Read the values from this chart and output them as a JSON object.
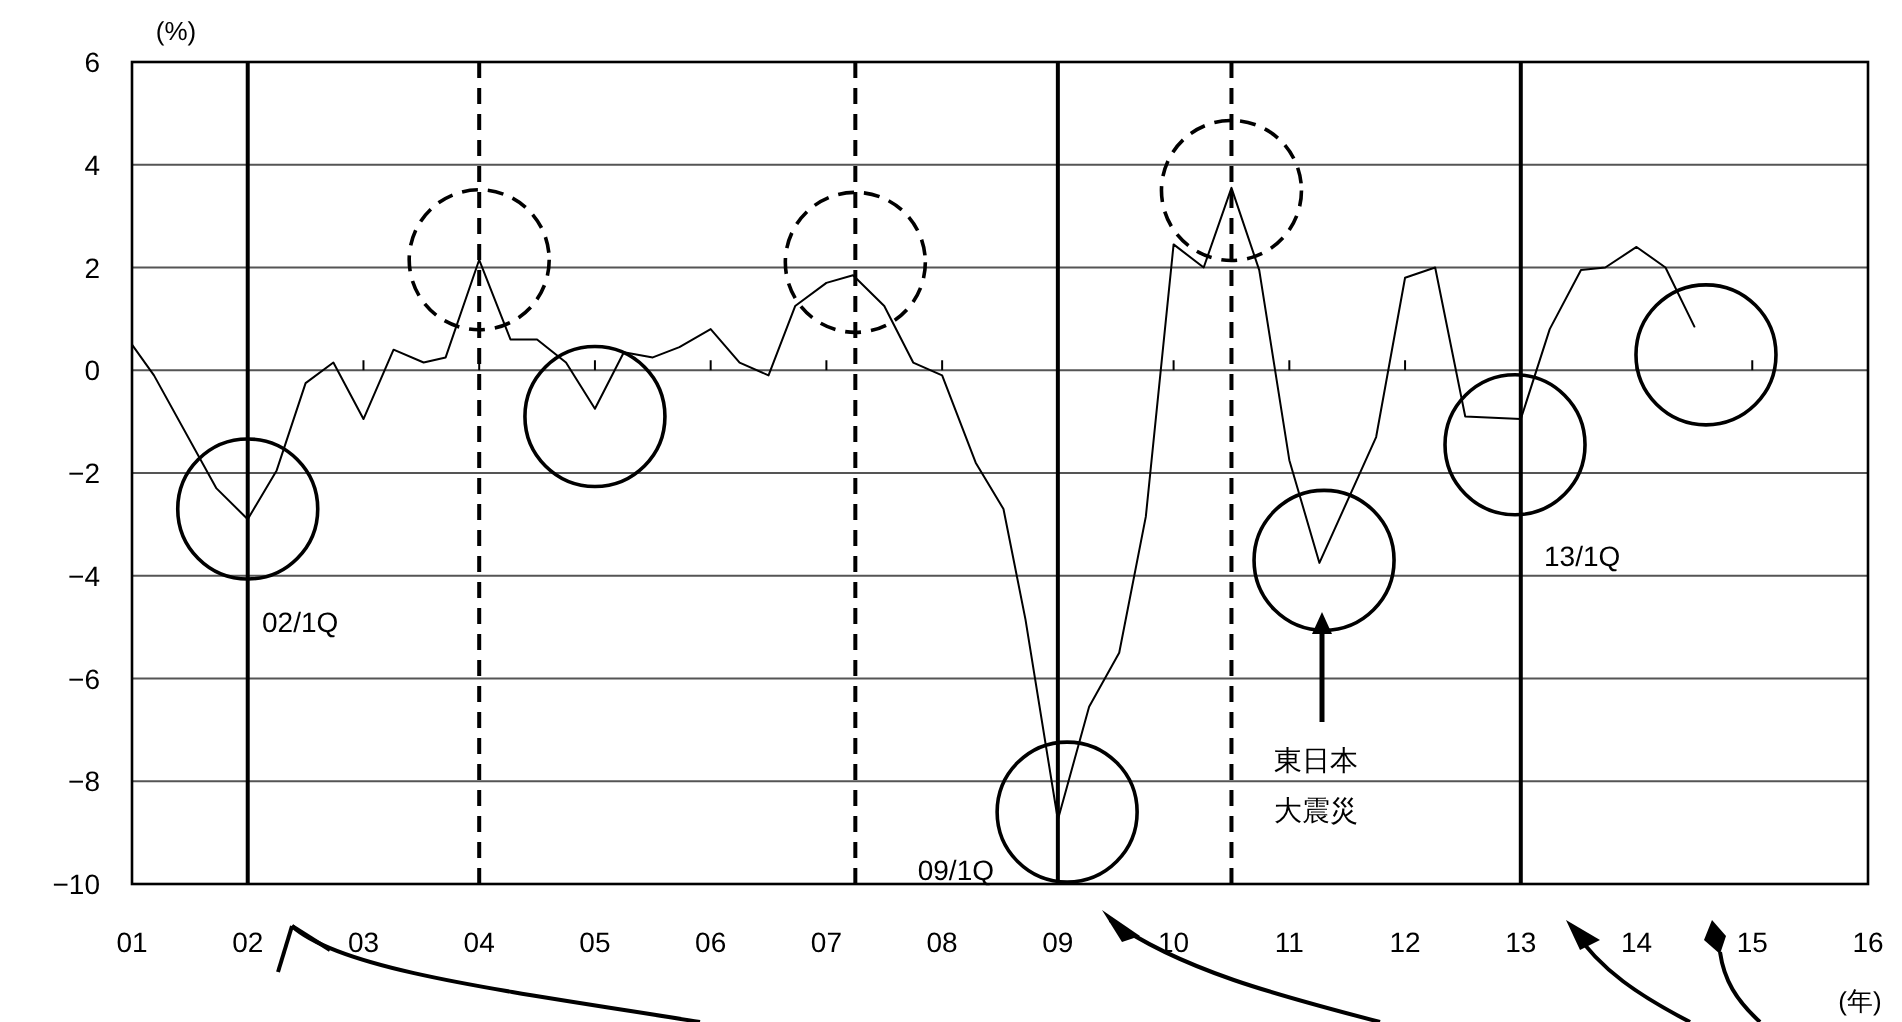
{
  "chart_data": {
    "type": "line",
    "ylabel": "(%)",
    "xlabel": "(年)",
    "x": [
      2001.0,
      2001.19,
      2001.73,
      2002.0,
      2002.25,
      2002.5,
      2002.74,
      2003.0,
      2003.26,
      2003.52,
      2003.71,
      2004.0,
      2004.27,
      2004.5,
      2004.75,
      2005.0,
      2005.25,
      2005.5,
      2005.73,
      2006.0,
      2006.25,
      2006.5,
      2006.73,
      2007.0,
      2007.23,
      2007.5,
      2007.75,
      2008.0,
      2008.29,
      2008.53,
      2008.72,
      2009.0,
      2009.27,
      2009.53,
      2009.76,
      2010.0,
      2010.26,
      2010.5,
      2010.74,
      2011.0,
      2011.26,
      2011.75,
      2012.0,
      2012.26,
      2012.52,
      2013.0,
      2013.25,
      2013.52,
      2013.73,
      2014.0,
      2014.25,
      2014.5
    ],
    "values": [
      0.5,
      -0.1,
      -2.3,
      -2.9,
      -1.95,
      -0.25,
      0.15,
      -0.95,
      0.4,
      0.15,
      0.25,
      2.15,
      0.6,
      0.6,
      0.15,
      -0.75,
      0.35,
      0.25,
      0.45,
      0.8,
      0.15,
      -0.1,
      1.25,
      1.7,
      1.85,
      1.25,
      0.15,
      -0.1,
      -1.8,
      -2.7,
      -4.85,
      -8.75,
      -6.55,
      -5.5,
      -2.85,
      2.45,
      2.0,
      3.55,
      1.95,
      -1.75,
      -3.75,
      -1.3,
      1.8,
      2.0,
      -0.9,
      -0.95,
      0.8,
      1.95,
      2.0,
      2.4,
      2.0,
      0.85
    ],
    "color": "#000000",
    "xlim": [
      2001,
      2016
    ],
    "xticks": [
      {
        "value": 2001,
        "label": "01"
      },
      {
        "value": 2002,
        "label": "02"
      },
      {
        "value": 2003,
        "label": "03"
      },
      {
        "value": 2004,
        "label": "04"
      },
      {
        "value": 2005,
        "label": "05"
      },
      {
        "value": 2006,
        "label": "06"
      },
      {
        "value": 2007,
        "label": "07"
      },
      {
        "value": 2008,
        "label": "08"
      },
      {
        "value": 2009,
        "label": "09"
      },
      {
        "value": 2010,
        "label": "10"
      },
      {
        "value": 2011,
        "label": "11"
      },
      {
        "value": 2012,
        "label": "12"
      },
      {
        "value": 2013,
        "label": "13"
      },
      {
        "value": 2014,
        "label": "14"
      },
      {
        "value": 2015,
        "label": "15"
      },
      {
        "value": 2016,
        "label": "16"
      }
    ],
    "ylim": [
      -10,
      6
    ],
    "yticks": [
      -10,
      -8,
      -6,
      -4,
      -2,
      0,
      2,
      4,
      6
    ],
    "grid": "y",
    "ref_lines": [
      {
        "axis": "x",
        "value": 2002,
        "line_style": "solid"
      },
      {
        "axis": "x",
        "value": 2004,
        "line_style": "dashed"
      },
      {
        "axis": "x",
        "value": 2007.25,
        "line_style": "dashed"
      },
      {
        "axis": "x",
        "value": 2009,
        "line_style": "solid"
      },
      {
        "axis": "x",
        "value": 2010.5,
        "line_style": "dashed"
      },
      {
        "axis": "x",
        "value": 2013,
        "line_style": "solid"
      }
    ],
    "annotations": [
      "02/1Q",
      "09/1Q",
      "13/1Q",
      "東日本大震災"
    ]
  }
}
